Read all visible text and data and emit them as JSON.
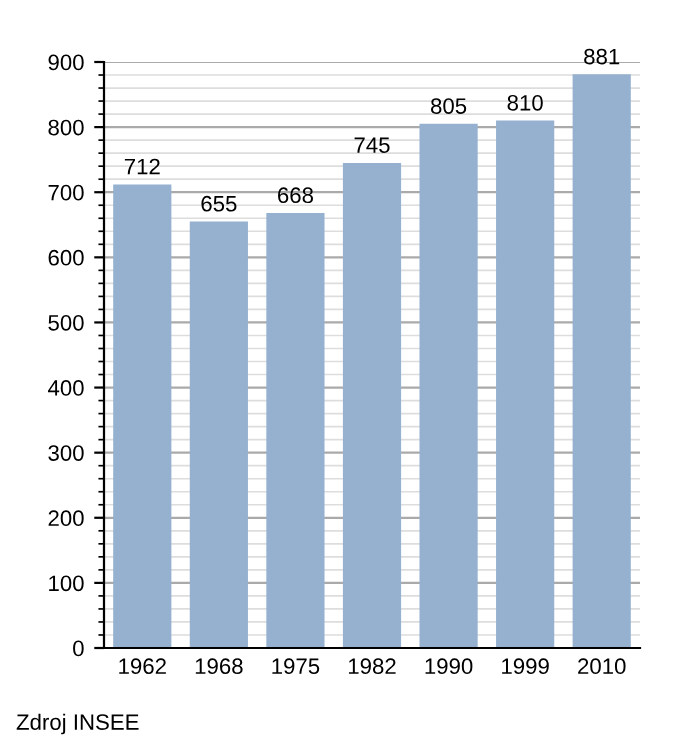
{
  "chart_data": {
    "type": "bar",
    "categories": [
      "1962",
      "1968",
      "1975",
      "1982",
      "1990",
      "1999",
      "2010"
    ],
    "values": [
      712,
      655,
      668,
      745,
      805,
      810,
      881
    ],
    "color": "#96b0cf",
    "data_labels": true,
    "ylim": [
      0,
      900
    ],
    "yticks": [
      0,
      100,
      200,
      300,
      400,
      500,
      600,
      700,
      800,
      900
    ],
    "grid": "y",
    "annotations": [
      "Zdroj INSEE"
    ]
  }
}
